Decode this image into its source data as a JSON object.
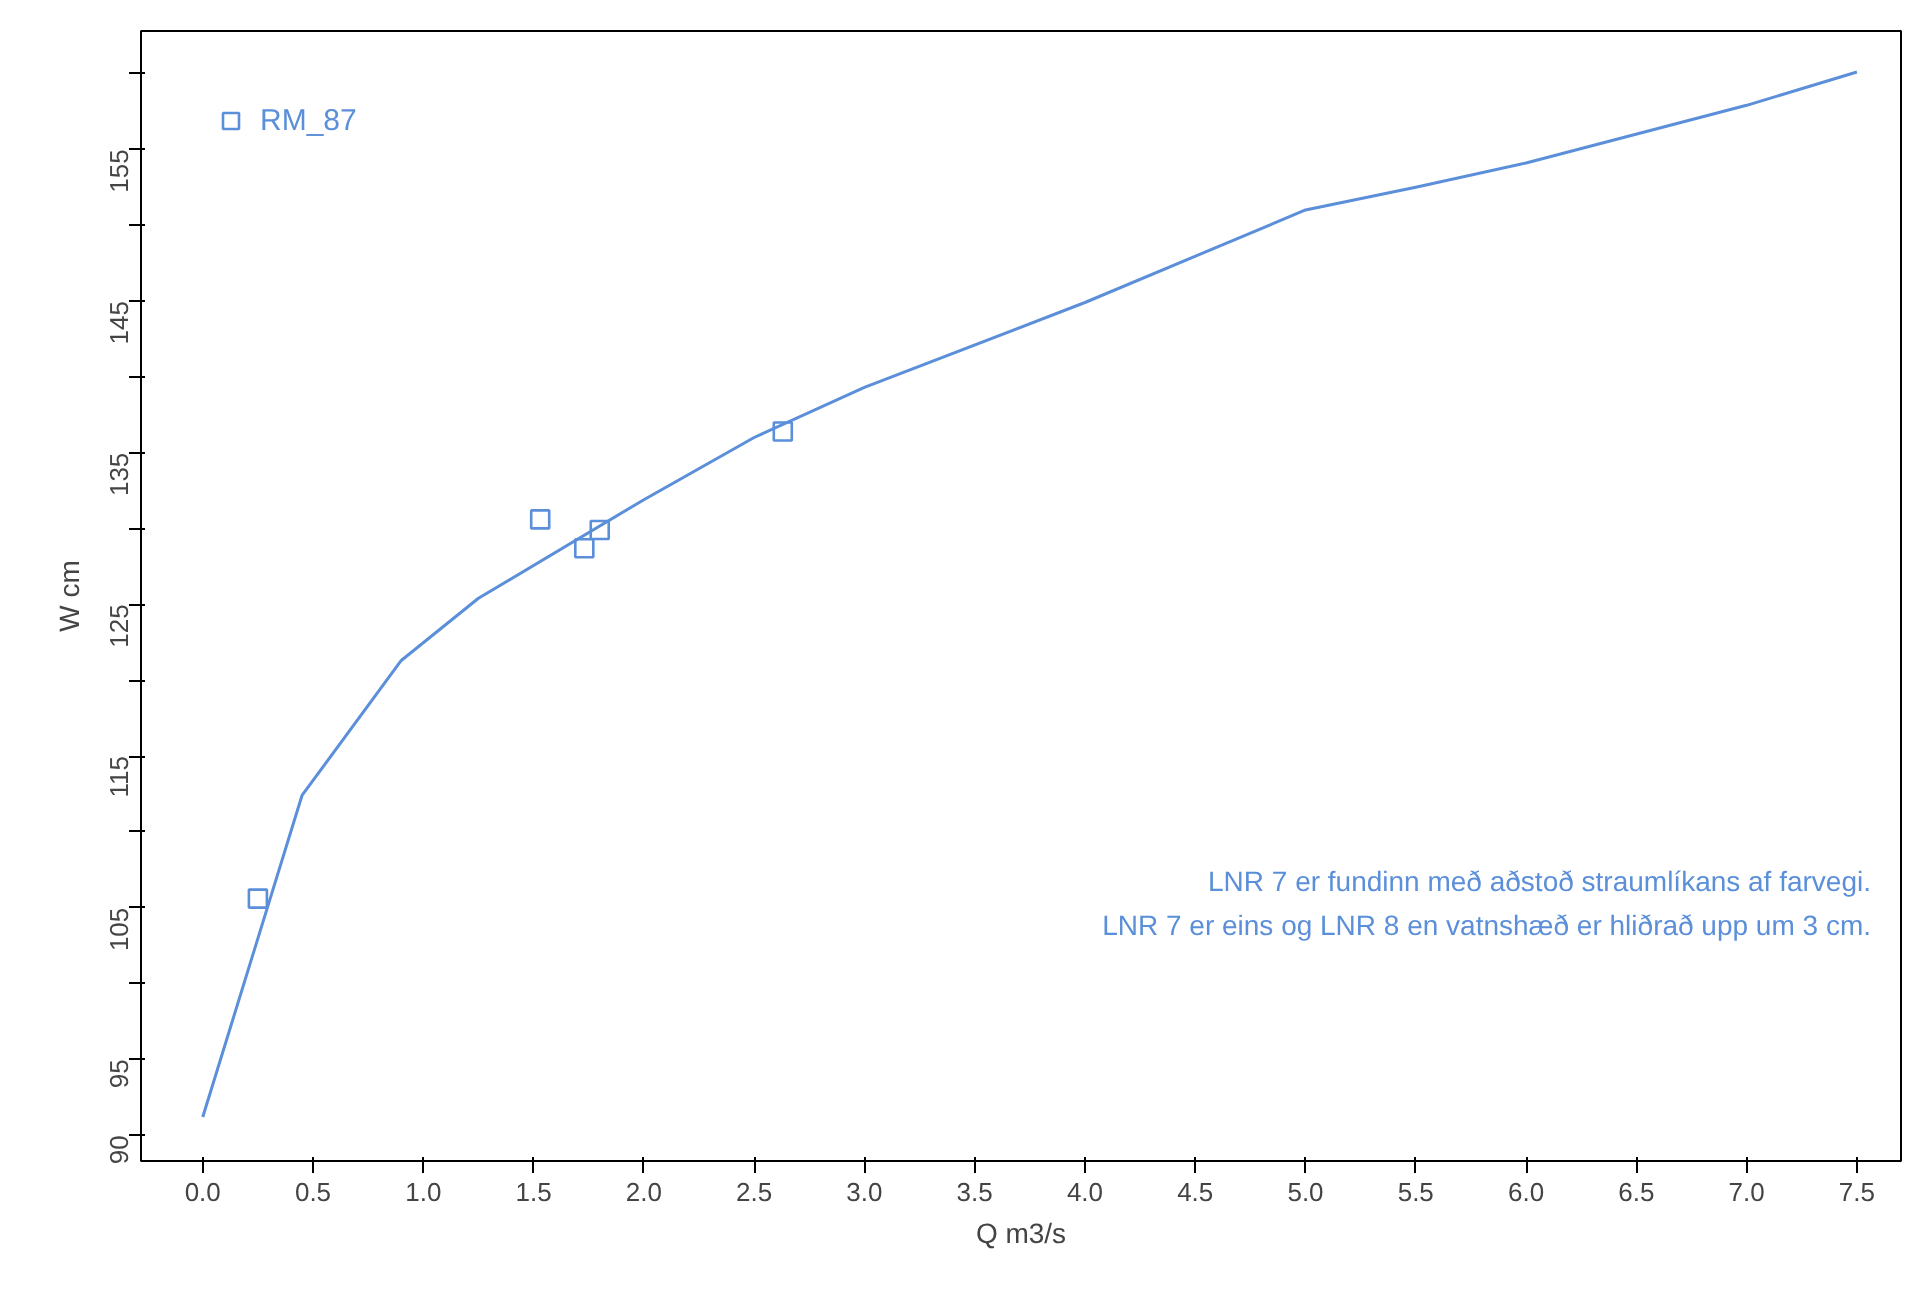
{
  "chart_data": {
    "type": "line",
    "xlabel": "Q m3/s",
    "ylabel": "W cm",
    "xlim": [
      -0.28,
      7.7
    ],
    "ylim": [
      88.3,
      162.8
    ],
    "xticks": [
      {
        "value": 0,
        "label": "0.0"
      },
      {
        "value": 0.5,
        "label": "0.5"
      },
      {
        "value": 1,
        "label": "1.0"
      },
      {
        "value": 1.5,
        "label": "1.5"
      },
      {
        "value": 2,
        "label": "2.0"
      },
      {
        "value": 2.5,
        "label": "2.5"
      },
      {
        "value": 3,
        "label": "3.0"
      },
      {
        "value": 3.5,
        "label": "3.5"
      },
      {
        "value": 4,
        "label": "4.0"
      },
      {
        "value": 4.5,
        "label": "4.5"
      },
      {
        "value": 5,
        "label": "5.0"
      },
      {
        "value": 5.5,
        "label": "5.5"
      },
      {
        "value": 6,
        "label": "6.0"
      },
      {
        "value": 6.5,
        "label": "6.5"
      },
      {
        "value": 7,
        "label": "7.0"
      },
      {
        "value": 7.5,
        "label": "7.5"
      }
    ],
    "yticks": [
      90,
      95,
      {
        "value": 100,
        "label": null
      },
      105,
      {
        "value": 110,
        "label": null
      },
      115,
      {
        "value": 120,
        "label": null
      },
      125,
      {
        "value": 130,
        "label": null
      },
      135,
      {
        "value": 140,
        "label": null
      },
      145,
      {
        "value": 150,
        "label": null
      },
      155,
      {
        "value": 160,
        "label": null
      }
    ],
    "grid": false,
    "legend": "top left",
    "series": [
      {
        "color": "#5b8fd9",
        "x": [
          0,
          0.45,
          0.9,
          1.25,
          2.0,
          2.5,
          3.0,
          4.0,
          5.0,
          5.5,
          6.0,
          7.0,
          7.5
        ],
        "values": [
          91.2,
          112.4,
          121.3,
          125.4,
          131.9,
          136.0,
          139.3,
          144.9,
          151.0,
          152.5,
          154.1,
          157.9,
          160.1
        ]
      },
      {
        "type": "scatter",
        "name": "RM_87",
        "color": "#5b8fd9",
        "marker": "square",
        "x": [
          0.25,
          1.53,
          1.73,
          1.8,
          2.63
        ],
        "values": [
          105.6,
          130.6,
          128.7,
          129.9,
          136.4
        ]
      }
    ],
    "annotations": [
      "LNR 7 er fundinn með aðstoð straumlíkans af farvegi.",
      "LNR 7 er eins og LNR 8 en vatnshæð er hliðrað upp um 3 cm."
    ]
  }
}
